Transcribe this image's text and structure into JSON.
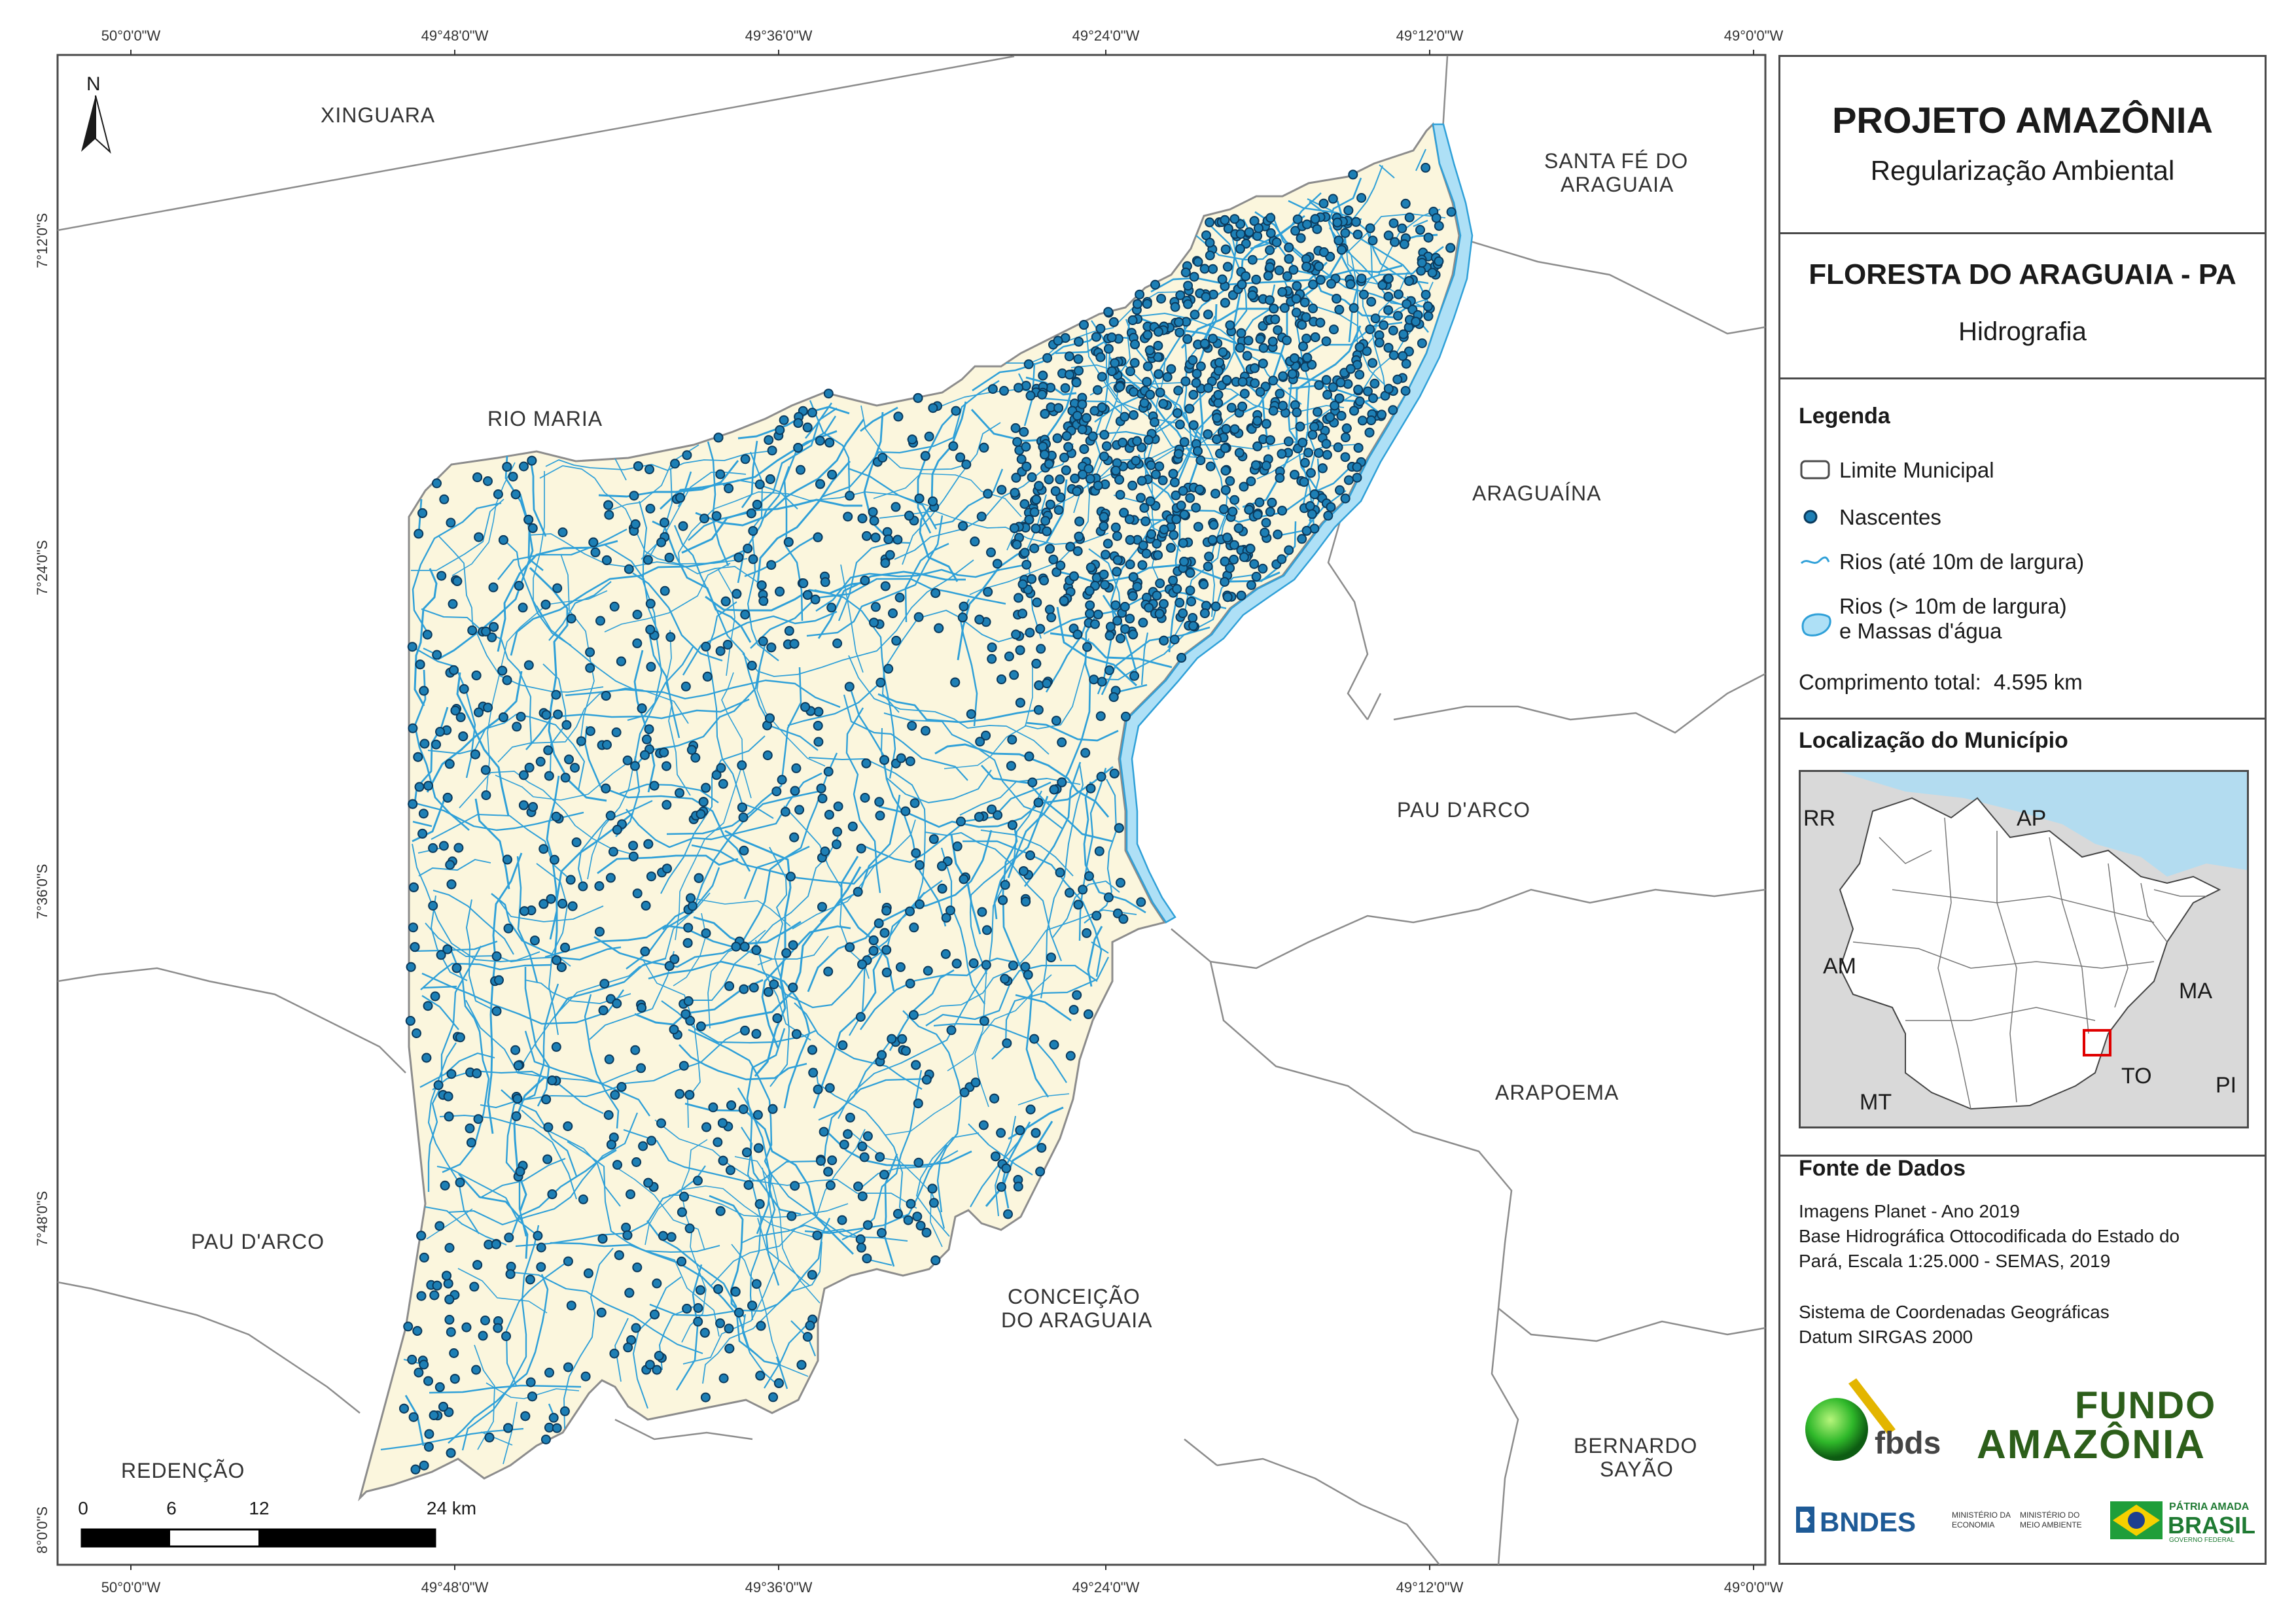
{
  "map": {
    "north_label": "N",
    "coords_top": [
      "50°0'0\"W",
      "49°48'0\"W",
      "49°36'0\"W",
      "49°24'0\"W",
      "49°12'0\"W",
      "49°0'0\"W"
    ],
    "coords_bottom": [
      "50°0'0\"W",
      "49°48'0\"W",
      "49°36'0\"W",
      "49°24'0\"W",
      "49°12'0\"W",
      "49°0'0\"W"
    ],
    "coords_left": [
      "7°12'0\"S",
      "7°24'0\"S",
      "7°36'0\"S",
      "7°48'0\"S",
      "8°0'0\"S"
    ],
    "places": {
      "xinguara": "XINGUARA",
      "santa_fe_1": "SANTA FÉ DO",
      "santa_fe_2": "ARAGUAIA",
      "rio_maria": "RIO MARIA",
      "araguaina": "ARAGUAÍNA",
      "pau_darco_e": "PAU D'ARCO",
      "arapoema": "ARAPOEMA",
      "pau_darco_w": "PAU D'ARCO",
      "conceicao_1": "CONCEIÇÃO",
      "conceicao_2": "DO ARAGUAIA",
      "redencao": "REDENÇÃO",
      "bernardo_1": "BERNARDO",
      "bernardo_2": "SAYÃO"
    },
    "scale_labels": [
      "0",
      "6",
      "12",
      "24 km"
    ],
    "colors": {
      "municipality_fill": "#fbf6dd",
      "river": "#2fa0d8",
      "nascente_fill": "#1d7fb5",
      "nascente_stroke": "#0b3a5c",
      "big_river_fill": "#aee0f6",
      "border": "#8c8c8c"
    }
  },
  "panel": {
    "title": "PROJETO AMAZÔNIA",
    "subtitle": "Regularização Ambiental",
    "municipality": "FLORESTA DO ARAGUAIA - PA",
    "theme": "Hidrografia",
    "legend_title": "Legenda",
    "legend": {
      "limite": "Limite Municipal",
      "nascentes": "Nascentes",
      "rios_small": "Rios (até 10m de largura)",
      "rios_big_1": "Rios (> 10m de largura)",
      "rios_big_2": "e Massas d'água",
      "total_label": "Comprimento total:",
      "total_value": "4.595 km"
    },
    "location_title": "Localização do Município",
    "inset_labels": {
      "rr": "RR",
      "ap": "AP",
      "am": "AM",
      "ma": "MA",
      "to": "TO",
      "mt": "MT",
      "pi": "PI"
    },
    "sources_title": "Fonte de Dados",
    "sources": {
      "l1": "Imagens Planet - Ano 2019",
      "l2": "Base Hidrográfica Ottocodificada do Estado do",
      "l3": "Pará, Escala 1:25.000 - SEMAS, 2019",
      "l4": "Sistema de Coordenadas Geográficas",
      "l5": "Datum SIRGAS 2000"
    },
    "logos": {
      "fbds": "fbds",
      "fundo_1": "FUNDO",
      "fundo_2": "AMAZÔNIA",
      "bndes": "BNDES",
      "min_eco_1": "MINISTÉRIO DA",
      "min_eco_2": "ECONOMIA",
      "min_ma_1": "MINISTÉRIO DO",
      "min_ma_2": "MEIO AMBIENTE",
      "patria_1": "PÁTRIA AMADA",
      "patria_2": "BRASIL",
      "patria_3": "GOVERNO FEDERAL"
    }
  }
}
